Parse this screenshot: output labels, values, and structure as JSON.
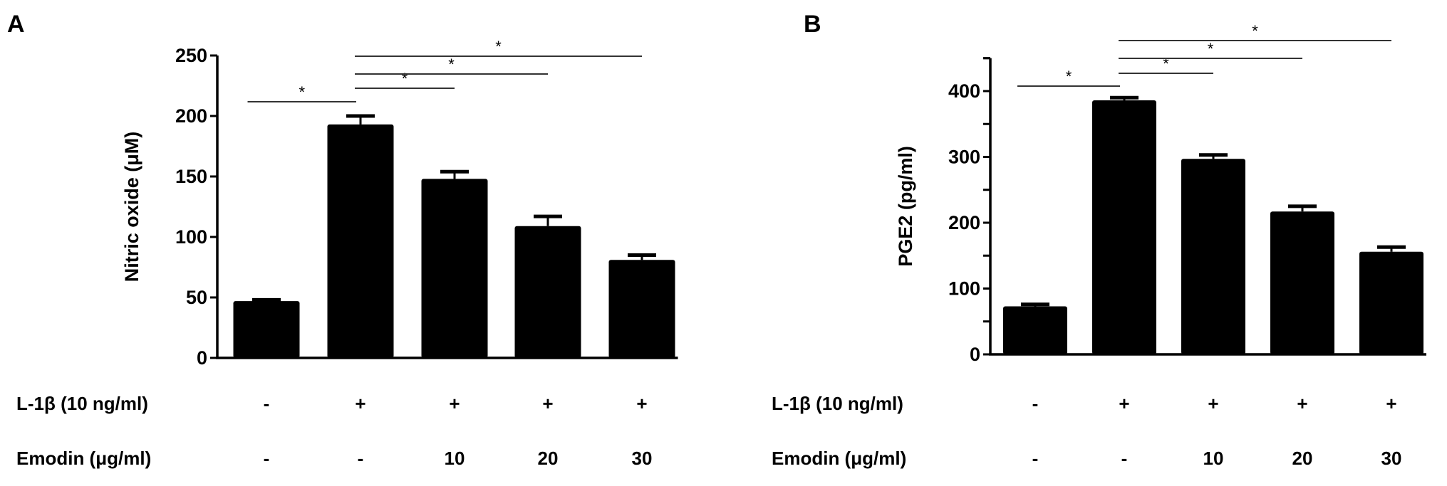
{
  "chart_data": [
    {
      "panel": "A",
      "type": "bar",
      "ylabel": "Nitric oxide  (μM)",
      "ylim": [
        0,
        250
      ],
      "yticks": [
        "0",
        "50",
        "100",
        "150",
        "200",
        "250"
      ],
      "values": [
        47,
        193,
        148,
        109,
        81
      ],
      "errors": [
        1,
        7,
        6,
        8,
        4
      ],
      "significance": [
        {
          "from": 0,
          "to": 1,
          "label": "*"
        },
        {
          "from": 1,
          "to": 2,
          "label": "*"
        },
        {
          "from": 1,
          "to": 3,
          "label": "*"
        },
        {
          "from": 1,
          "to": 4,
          "label": "*"
        }
      ],
      "rows": [
        {
          "label": "L-1β (10 ng/ml)",
          "values": [
            "-",
            "+",
            "+",
            "+",
            "+"
          ]
        },
        {
          "label": "Emodin (μg/ml)",
          "values": [
            "-",
            "-",
            "10",
            "20",
            "30"
          ]
        }
      ],
      "color": "#000000"
    },
    {
      "panel": "B",
      "type": "bar",
      "ylabel": "PGE2 (pg/ml)",
      "ylim": [
        0,
        450
      ],
      "yticks": [
        "0",
        "100",
        "200",
        "300",
        "400"
      ],
      "values": [
        73,
        386,
        297,
        217,
        156
      ],
      "errors": [
        3,
        4,
        6,
        8,
        7
      ],
      "significance": [
        {
          "from": 0,
          "to": 1,
          "label": "*"
        },
        {
          "from": 1,
          "to": 2,
          "label": "*"
        },
        {
          "from": 1,
          "to": 3,
          "label": "*"
        },
        {
          "from": 1,
          "to": 4,
          "label": "*"
        }
      ],
      "rows": [
        {
          "label": "L-1β (10 ng/ml)",
          "values": [
            "-",
            "+",
            "+",
            "+",
            "+"
          ]
        },
        {
          "label": "Emodin (μg/ml)",
          "values": [
            "-",
            "-",
            "10",
            "20",
            "30"
          ]
        }
      ],
      "color": "#000000"
    }
  ]
}
